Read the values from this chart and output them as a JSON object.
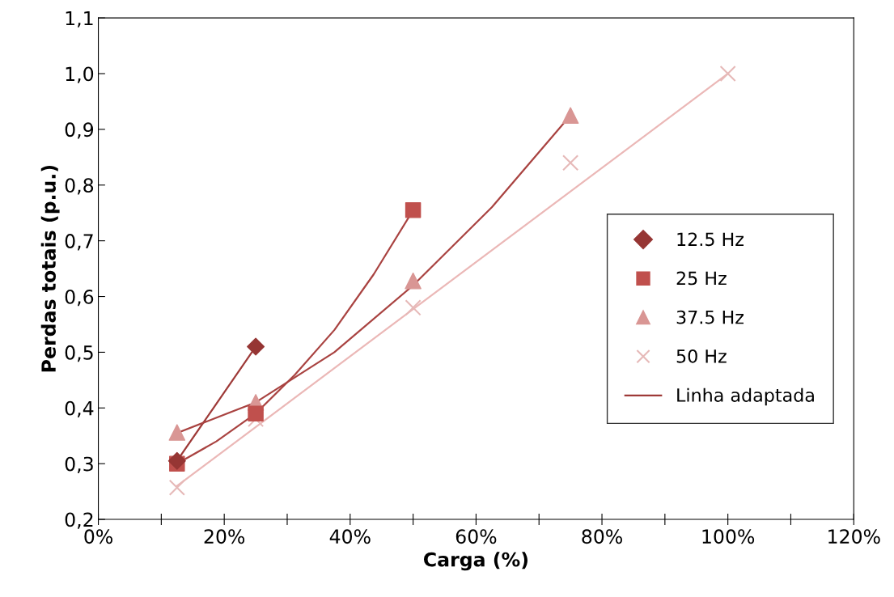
{
  "chart_data": {
    "type": "scatter",
    "xlabel": "Carga (%)",
    "ylabel": "Perdas totais (p.u.)",
    "xlim": [
      0,
      120
    ],
    "ylim": [
      0.2,
      1.1
    ],
    "xticks": [
      {
        "value": 0,
        "label": "0%"
      },
      {
        "value": 10,
        "label": null
      },
      {
        "value": 20,
        "label": "20%"
      },
      {
        "value": 30,
        "label": null
      },
      {
        "value": 40,
        "label": "40%"
      },
      {
        "value": 50,
        "label": null
      },
      {
        "value": 60,
        "label": "60%"
      },
      {
        "value": 70,
        "label": null
      },
      {
        "value": 80,
        "label": "80%"
      },
      {
        "value": 90,
        "label": null
      },
      {
        "value": 100,
        "label": "100%"
      },
      {
        "value": 110,
        "label": null
      },
      {
        "value": 120,
        "label": "120%"
      }
    ],
    "yticks": [
      {
        "value": 0.2,
        "label": "0,2"
      },
      {
        "value": 0.3,
        "label": "0,3"
      },
      {
        "value": 0.4,
        "label": "0,4"
      },
      {
        "value": 0.5,
        "label": "0,5"
      },
      {
        "value": 0.6,
        "label": "0,6"
      },
      {
        "value": 0.7,
        "label": "0,7"
      },
      {
        "value": 0.8,
        "label": "0,8"
      },
      {
        "value": 0.9,
        "label": "0,9"
      },
      {
        "value": 1.0,
        "label": "1,0"
      },
      {
        "value": 1.1,
        "label": "1,1"
      }
    ],
    "grid": false,
    "legend": "right",
    "series": [
      {
        "name": "12.5 Hz",
        "marker": "diamond",
        "color": "#963634",
        "x": [
          12.5,
          25
        ],
        "values": [
          0.305,
          0.51
        ]
      },
      {
        "name": "25 Hz",
        "marker": "square",
        "color": "#c0504d",
        "x": [
          12.5,
          25,
          50
        ],
        "values": [
          0.3,
          0.39,
          0.755
        ]
      },
      {
        "name": "37.5 Hz",
        "marker": "triangle",
        "color": "#d99694",
        "x": [
          12.5,
          25,
          50,
          75
        ],
        "values": [
          0.356,
          0.41,
          0.628,
          0.925
        ]
      },
      {
        "name": "50 Hz",
        "marker": "cross",
        "color": "#e6b9b8",
        "x": [
          12.5,
          25,
          50,
          75,
          100
        ],
        "values": [
          0.257,
          0.38,
          0.58,
          0.84,
          1.0
        ]
      },
      {
        "name": "Linha adaptada",
        "type": "line",
        "marker": "none",
        "color": "#9e3a38",
        "x": [
          12.5,
          25
        ],
        "values": [
          0.305,
          0.51
        ]
      },
      {
        "type": "line",
        "marker": "none",
        "color": "#a94341",
        "x": [
          12.5,
          18.75,
          25,
          31.25,
          37.5,
          43.75,
          50
        ],
        "values": [
          0.3,
          0.34,
          0.39,
          0.46,
          0.54,
          0.64,
          0.755
        ]
      },
      {
        "type": "line",
        "marker": "none",
        "color": "#a94341",
        "x": [
          12.5,
          25,
          37.5,
          50,
          62.5,
          75
        ],
        "values": [
          0.355,
          0.41,
          0.5,
          0.62,
          0.76,
          0.925
        ]
      },
      {
        "type": "line",
        "marker": "none",
        "color": "#ebb8b7",
        "x": [
          12.5,
          100
        ],
        "values": [
          0.26,
          1.0
        ]
      }
    ]
  }
}
